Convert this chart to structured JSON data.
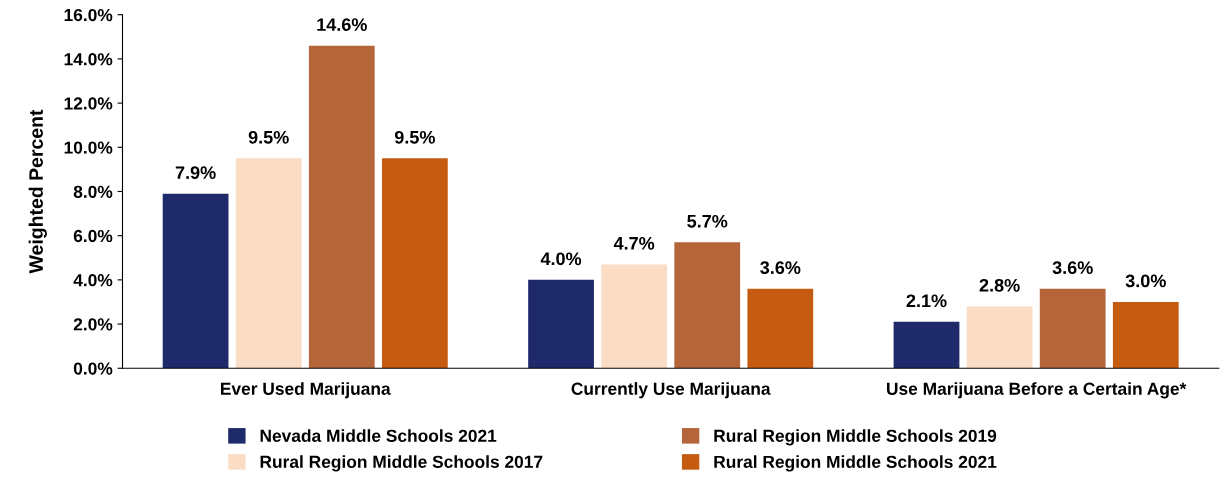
{
  "chart_data": {
    "type": "bar",
    "ylabel": "Weighted Percent",
    "categories": [
      "Ever Used Marijuana",
      "Currently Use Marijuana",
      "Use Marijuana Before a Certain Age*"
    ],
    "series": [
      {
        "name": "Nevada Middle Schools 2021",
        "color": "#1f2a6b",
        "values": [
          7.9,
          4.0,
          2.1
        ],
        "value_labels": [
          "7.9%",
          "4.0%",
          "2.1%"
        ]
      },
      {
        "name": "Rural Region Middle Schools 2017",
        "color": "#fbdcc4",
        "values": [
          9.5,
          4.7,
          2.8
        ],
        "value_labels": [
          "9.5%",
          "4.7%",
          "2.8%"
        ]
      },
      {
        "name": "Rural Region Middle Schools 2019",
        "color": "#b5653a",
        "values": [
          14.6,
          5.7,
          3.6
        ],
        "value_labels": [
          "14.6%",
          "5.7%",
          "3.6%"
        ]
      },
      {
        "name": "Rural Region Middle Schools 2021",
        "color": "#c55a11",
        "values": [
          9.5,
          3.6,
          3.0
        ],
        "value_labels": [
          "9.5%",
          "3.6%",
          "3.0%"
        ]
      }
    ],
    "ylim": [
      0,
      16
    ],
    "yticks": [
      {
        "value": 0,
        "label": "0.0%"
      },
      {
        "value": 2,
        "label": "2.0%"
      },
      {
        "value": 4,
        "label": "4.0%"
      },
      {
        "value": 6,
        "label": "6.0%"
      },
      {
        "value": 8,
        "label": "8.0%"
      },
      {
        "value": 10,
        "label": "10.0%"
      },
      {
        "value": 12,
        "label": "12.0%"
      },
      {
        "value": 14,
        "label": "14.0%"
      },
      {
        "value": 16,
        "label": "16.0%"
      }
    ],
    "grid": false,
    "legend": "bottom"
  }
}
